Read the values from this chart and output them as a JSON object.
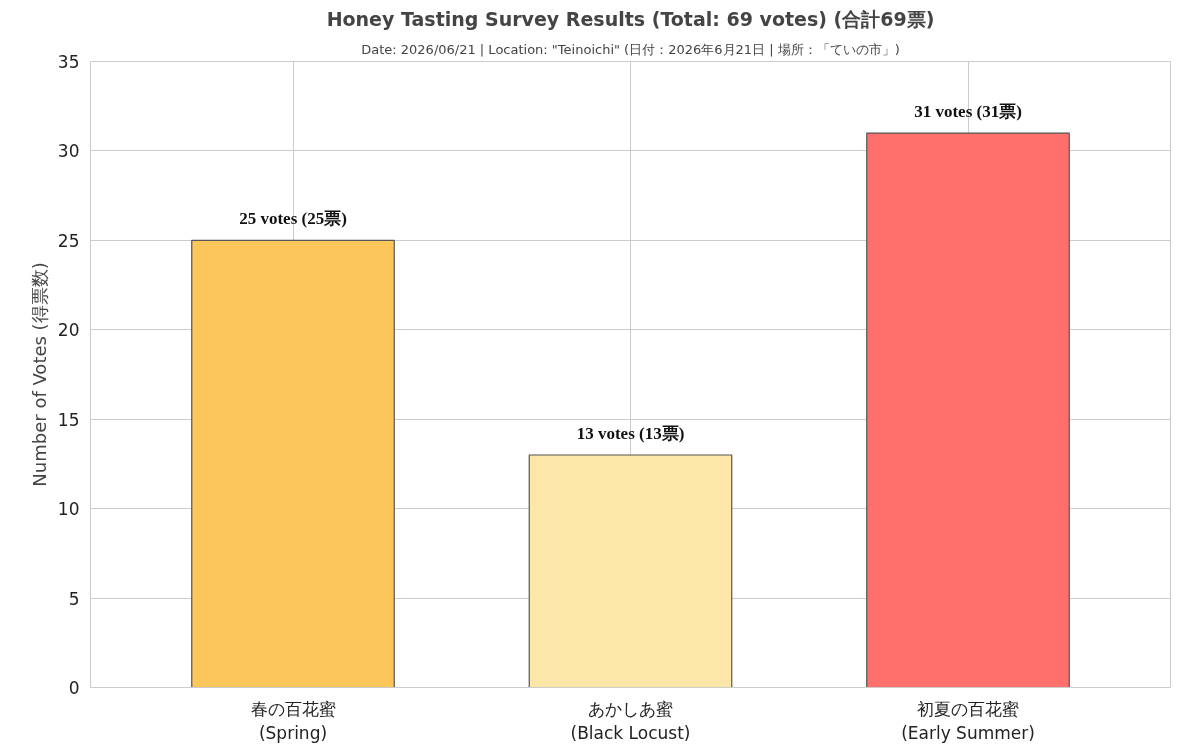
{
  "chart_data": {
    "type": "bar",
    "title": "Honey Tasting Survey Results (Total: 69 votes) (合計69票)",
    "subtitle": "Date: 2026/06/21 | Location: \"Teinoichi\" (日付：2026年6月21日 | 場所：「ていの市」)",
    "ylabel": "Number of Votes (得票数)",
    "categories": [
      "春の百花蜜\n(Spring)",
      "あかしあ蜜\n(Black Locust)",
      "初夏の百花蜜\n(Early Summer)"
    ],
    "values": [
      25,
      13,
      31
    ],
    "colors": [
      "#fcc65a",
      "#fde7a8",
      "#ff6f6b"
    ],
    "value_labels": [
      "25 votes (25票)",
      "13 votes (13票)",
      "31 votes (31票)"
    ],
    "ylim": [
      0,
      35
    ],
    "yticks": [
      0,
      5,
      10,
      15,
      20,
      25,
      30,
      35
    ],
    "grid": true
  }
}
